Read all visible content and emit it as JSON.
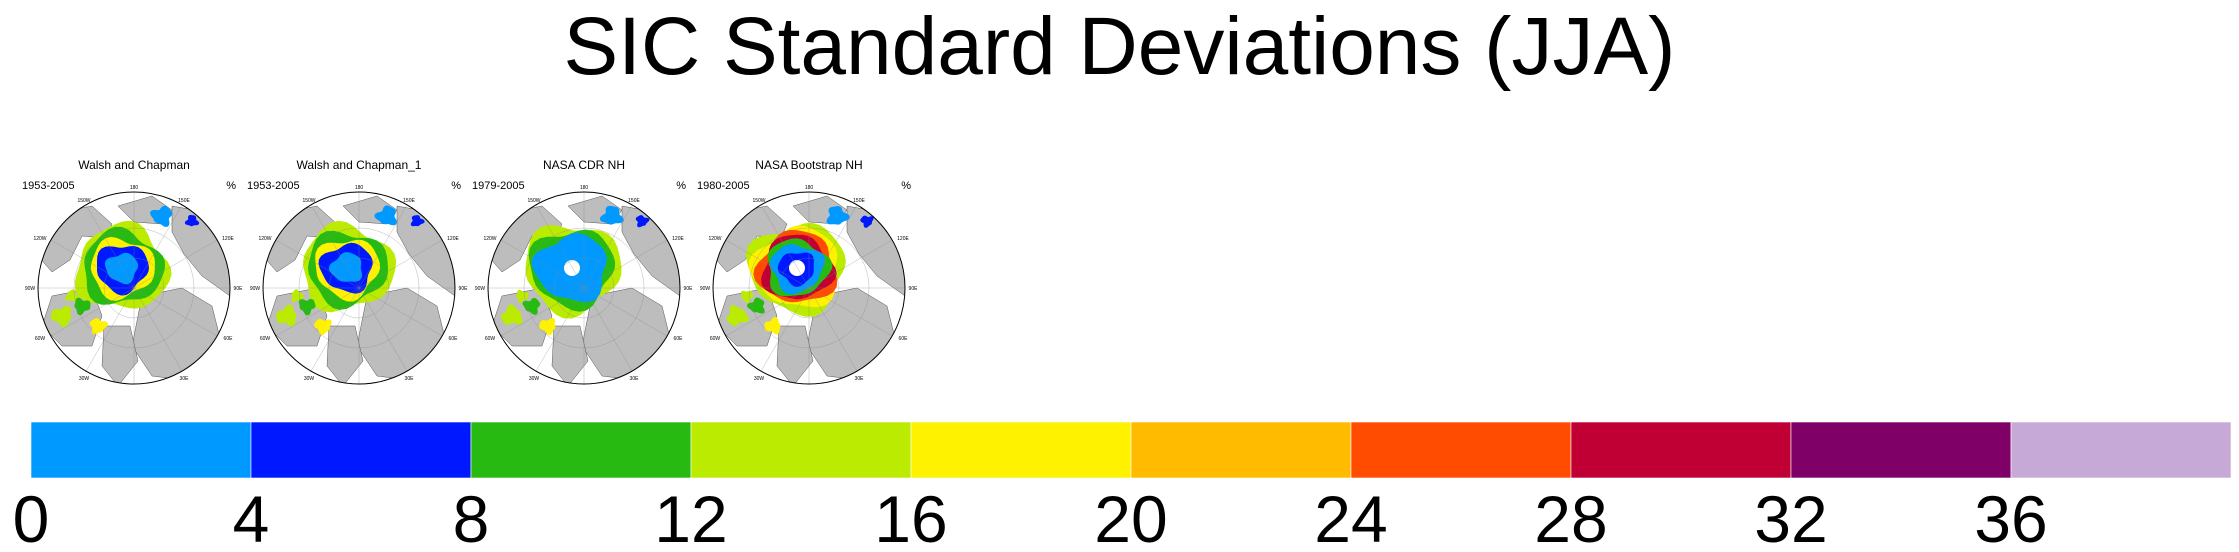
{
  "title": "SIC Standard Deviations (JJA)",
  "panels": [
    {
      "title": "Walsh and Chapman",
      "period": "1953-2005",
      "unit": "%",
      "style": "wc"
    },
    {
      "title": "Walsh and Chapman_1",
      "period": "1953-2005",
      "unit": "%",
      "style": "wc"
    },
    {
      "title": "NASA CDR NH",
      "period": "1979-2005",
      "unit": "%",
      "style": "cdr"
    },
    {
      "title": "NASA Bootstrap NH",
      "period": "1980-2005",
      "unit": "%",
      "style": "bs"
    }
  ],
  "map_labels": {
    "top": "180",
    "top_left": "150W",
    "top_right": "150E",
    "left_upper": "120W",
    "right_upper": "120E",
    "left": "90W",
    "right": "90E",
    "left_lower": "60W",
    "right_lower": "60E",
    "bottom_left": "30W",
    "bottom_right": "30E",
    "bottom": "0"
  },
  "chart_data": {
    "type": "heatmap",
    "title": "SIC Standard Deviations (JJA)",
    "colorbar": {
      "unit": "%",
      "tick_labels": [
        "0",
        "4",
        "8",
        "12",
        "16",
        "20",
        "24",
        "28",
        "32",
        "36"
      ],
      "bins": [
        {
          "from": 0,
          "to": 4,
          "color": "#0099ff"
        },
        {
          "from": 4,
          "to": 8,
          "color": "#0018ff"
        },
        {
          "from": 8,
          "to": 12,
          "color": "#27bb12"
        },
        {
          "from": 12,
          "to": 16,
          "color": "#bbeb00"
        },
        {
          "from": 16,
          "to": 20,
          "color": "#fff200"
        },
        {
          "from": 20,
          "to": 24,
          "color": "#ffbb00"
        },
        {
          "from": 24,
          "to": 28,
          "color": "#ff4c00"
        },
        {
          "from": 28,
          "to": 32,
          "color": "#c00035"
        },
        {
          "from": 32,
          "to": 36,
          "color": "#7f0066"
        },
        {
          "from": 36,
          "to": 40,
          "color": "#c6a9d6"
        }
      ]
    }
  }
}
